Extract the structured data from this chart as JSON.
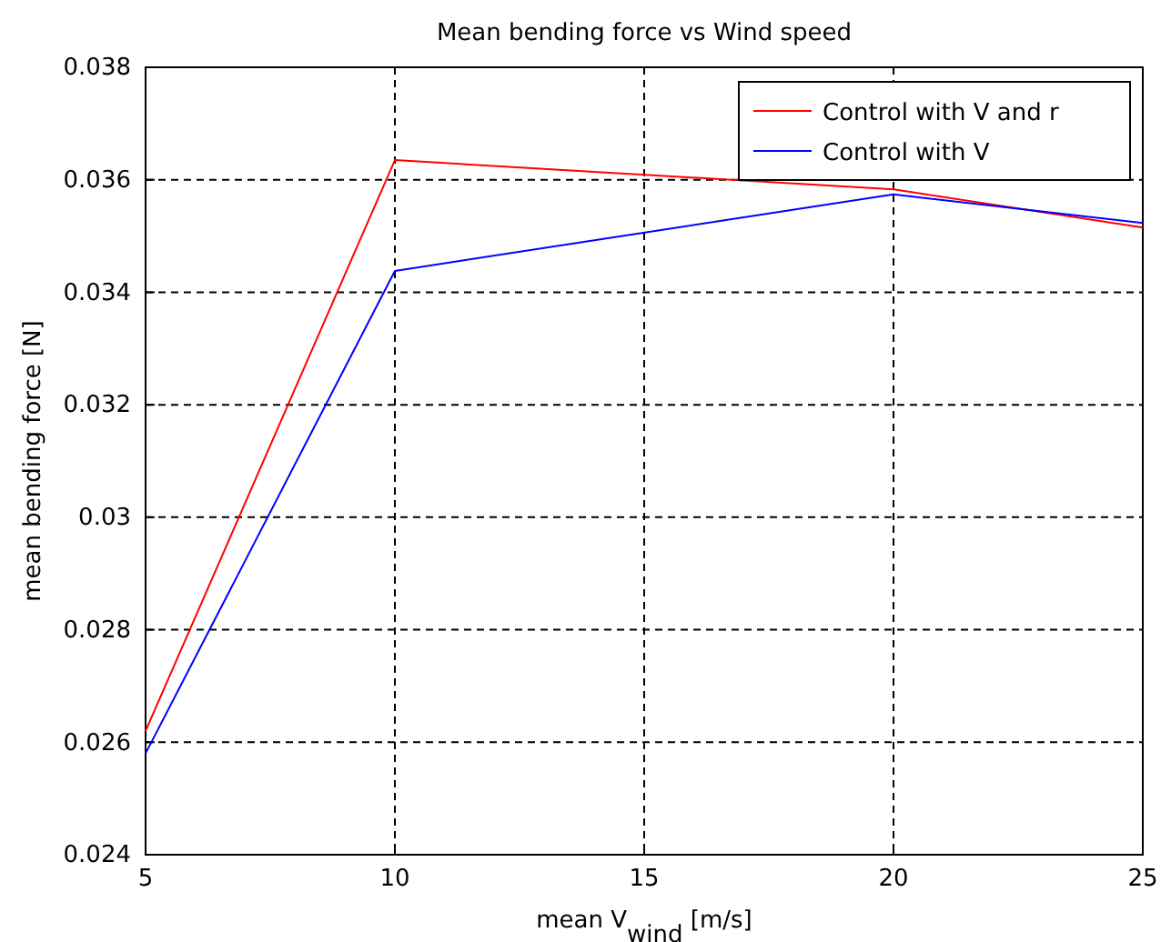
{
  "chart_data": {
    "type": "line",
    "title": "Mean bending force vs Wind speed",
    "xlabel": "mean V$_{wind}$ [m/s]",
    "ylabel": "mean bending force [N]",
    "x": [
      5,
      10,
      20,
      25
    ],
    "series": [
      {
        "name": "Control with V and r",
        "color": "#ff0000",
        "values": [
          0.0262,
          0.03635,
          0.03583,
          0.03515
        ]
      },
      {
        "name": "Control with V",
        "color": "#0000ff",
        "values": [
          0.0258,
          0.03438,
          0.03574,
          0.03523
        ]
      }
    ],
    "xlim": [
      5,
      25
    ],
    "xticks": [
      5,
      10,
      15,
      20,
      25
    ],
    "ylim": [
      0.024,
      0.038
    ],
    "yticks": [
      0.024,
      0.026,
      0.028,
      0.03,
      0.032,
      0.034,
      0.036,
      0.038
    ],
    "grid": true,
    "legend": "top right",
    "marker": "none",
    "line_style": "solid"
  }
}
